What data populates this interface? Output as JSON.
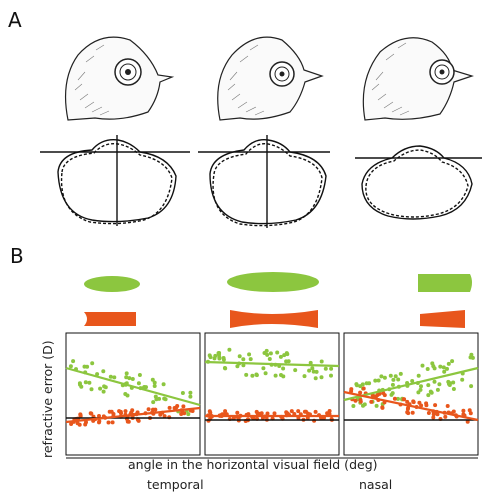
{
  "panels": {
    "a_label": "A",
    "b_label": "B"
  },
  "figure_b": {
    "ylabel": "refractive error (D)",
    "xlabel": "angle in the horizontal visual field (deg)",
    "region_left": "temporal",
    "region_right": "nasal"
  },
  "colors": {
    "green": "#8cc63f",
    "orange": "#e8561c",
    "black": "#111111"
  },
  "chart_data": [
    {
      "type": "scatter",
      "title": "",
      "xlabel": "angle in the horizontal visual field (deg)",
      "ylabel": "refractive error (D)",
      "panels": [
        {
          "series": [
            {
              "color": "#8cc63f",
              "trend": "decreasing"
            },
            {
              "color": "#e8561c",
              "trend": "flat"
            }
          ]
        },
        {
          "series": [
            {
              "color": "#8cc63f",
              "trend": "flat"
            },
            {
              "color": "#e8561c",
              "trend": "flat"
            }
          ]
        },
        {
          "series": [
            {
              "color": "#8cc63f",
              "trend": "increasing"
            },
            {
              "color": "#e8561c",
              "trend": "decreasing"
            }
          ]
        }
      ]
    }
  ]
}
